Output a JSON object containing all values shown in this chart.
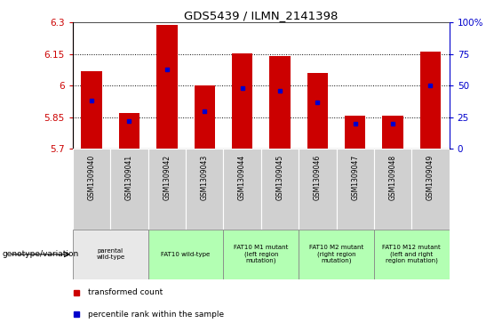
{
  "title": "GDS5439 / ILMN_2141398",
  "samples": [
    "GSM1309040",
    "GSM1309041",
    "GSM1309042",
    "GSM1309043",
    "GSM1309044",
    "GSM1309045",
    "GSM1309046",
    "GSM1309047",
    "GSM1309048",
    "GSM1309049"
  ],
  "transformed_count": [
    6.07,
    5.87,
    6.29,
    6.0,
    6.155,
    6.14,
    6.06,
    5.855,
    5.855,
    6.16
  ],
  "percentile_rank": [
    38,
    22,
    63,
    30,
    48,
    46,
    37,
    20,
    20,
    50
  ],
  "ylim": [
    5.7,
    6.3
  ],
  "yticks": [
    5.7,
    5.85,
    6.0,
    6.15,
    6.3
  ],
  "ytick_labels": [
    "5.7",
    "5.85",
    "6",
    "6.15",
    "6.3"
  ],
  "right_yticks": [
    0,
    25,
    50,
    75,
    100
  ],
  "right_ytick_labels": [
    "0",
    "25",
    "50",
    "75",
    "100%"
  ],
  "bar_color": "#cc0000",
  "dot_color": "#0000cc",
  "bar_width": 0.55,
  "genotype_groups": [
    {
      "label": "parental\nwild-type",
      "samples": [
        0,
        1
      ],
      "color": "#ccffcc"
    },
    {
      "label": "FAT10 wild-type",
      "samples": [
        2,
        3
      ],
      "color": "#ccffcc"
    },
    {
      "label": "FAT10 M1 mutant\n(left region\nmutation)",
      "samples": [
        4,
        5
      ],
      "color": "#ccffcc"
    },
    {
      "label": "FAT10 M2 mutant\n(right region\nmutation)",
      "samples": [
        6,
        7
      ],
      "color": "#ccffcc"
    },
    {
      "label": "FAT10 M12 mutant\n(left and right\nregion mutation)",
      "samples": [
        8,
        9
      ],
      "color": "#ccffcc"
    }
  ],
  "legend_red_label": "transformed count",
  "legend_blue_label": "percentile rank within the sample",
  "genotype_label": "genotype/variation",
  "xlabel_color": "#cc0000",
  "right_axis_color": "#0000cc",
  "parental_color": "#e8e8e8",
  "green_color": "#b3ffb3"
}
